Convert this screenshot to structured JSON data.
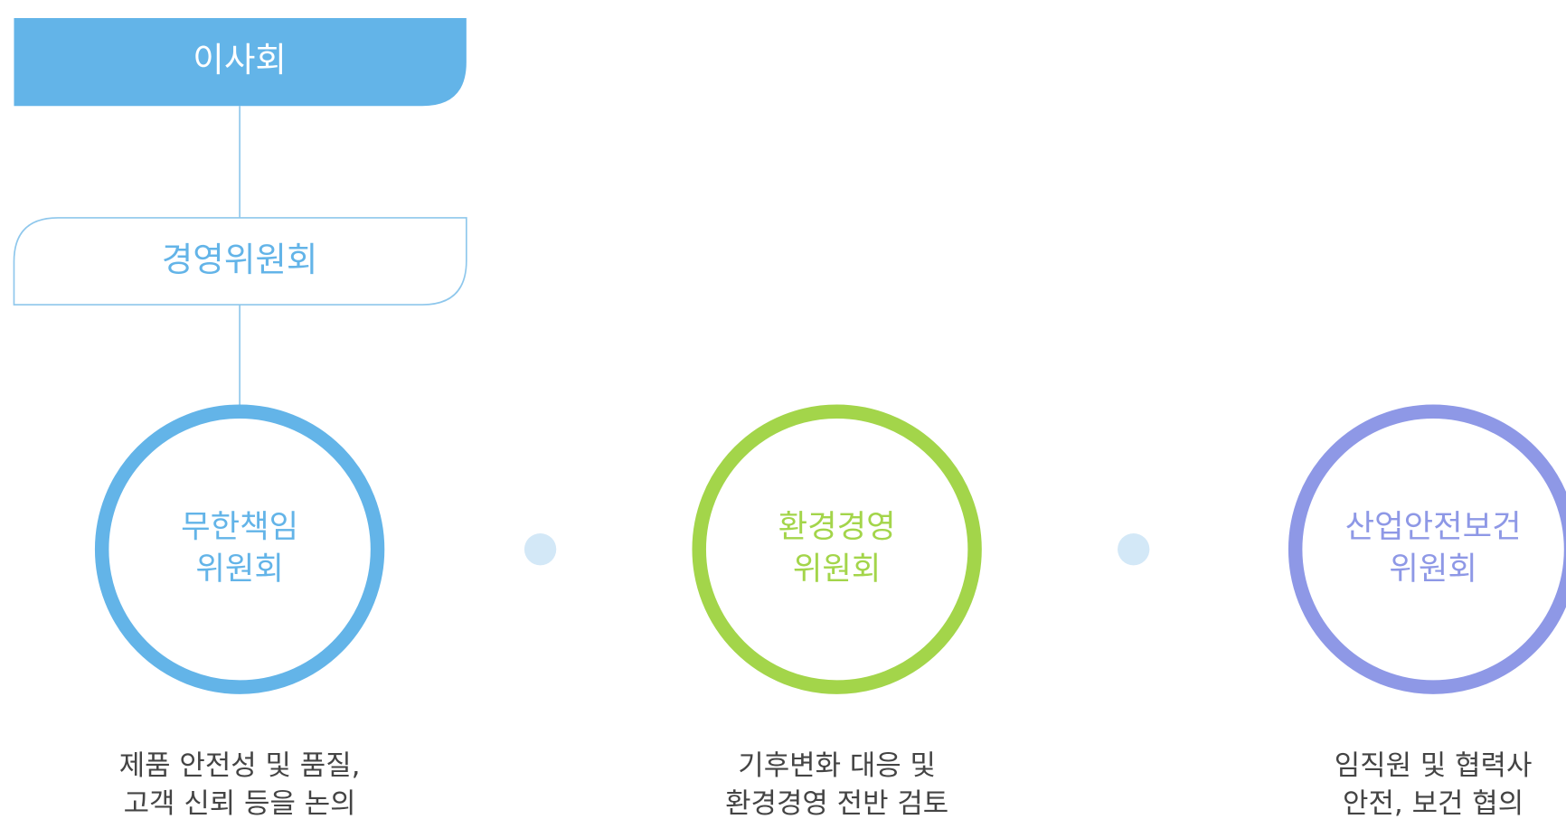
{
  "board": {
    "label": "이사회"
  },
  "management": {
    "label": "경영위원회"
  },
  "committees": [
    {
      "name": [
        "무한책임",
        "위원회"
      ],
      "description": [
        "제품 안전성 및 품질,",
        "고객 신뢰 등을  논의"
      ]
    },
    {
      "name": [
        "환경경영",
        "위원회"
      ],
      "description": [
        "기후변화 대응 및",
        "환경경영 전반 검토"
      ]
    },
    {
      "name": [
        "산업안전보건",
        "위원회"
      ],
      "description": [
        "임직원 및 협력사",
        "안전, 보건 협의"
      ]
    }
  ]
}
